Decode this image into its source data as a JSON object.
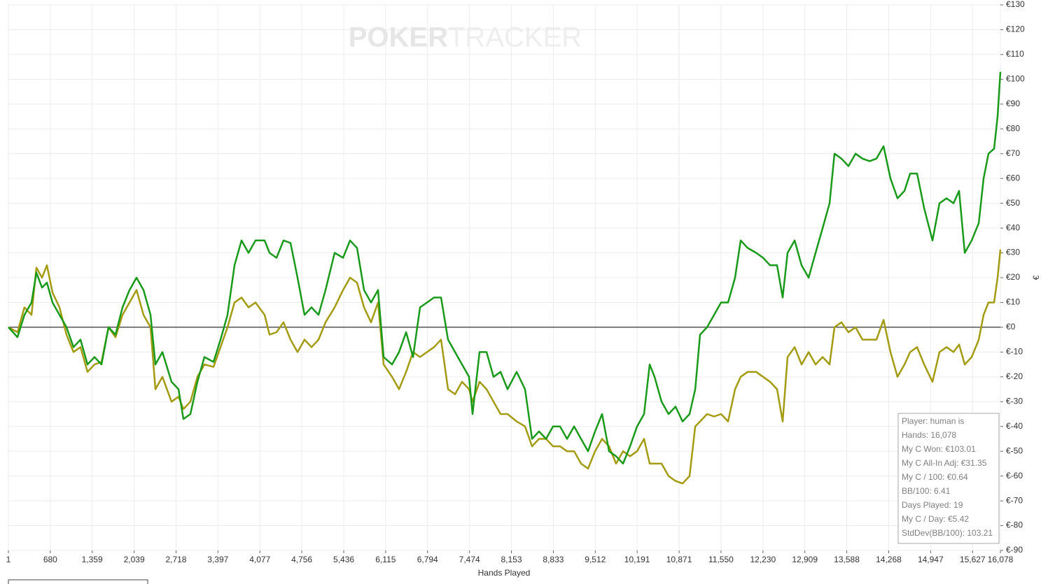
{
  "chart_data": {
    "type": "line",
    "watermark": {
      "left": "POKER",
      "right": "TRACKER"
    },
    "x_label": "Hands Played",
    "y_label": "€",
    "xlim": [
      1,
      16078
    ],
    "ylim": [
      -90,
      130
    ],
    "grid": true,
    "xticks": [
      1,
      680,
      {
        "value": 1359,
        "label": "1,359"
      },
      {
        "value": 2039,
        "label": "2,039"
      },
      {
        "value": 2718,
        "label": "2,718"
      },
      {
        "value": 3397,
        "label": "3,397"
      },
      {
        "value": 4077,
        "label": "4,077"
      },
      {
        "value": 4756,
        "label": "4,756"
      },
      {
        "value": 5436,
        "label": "5,436"
      },
      {
        "value": 6115,
        "label": "6,115"
      },
      {
        "value": 6794,
        "label": "6,794"
      },
      {
        "value": 7474,
        "label": "7,474"
      },
      {
        "value": 8153,
        "label": "8,153"
      },
      {
        "value": 8833,
        "label": "8,833"
      },
      {
        "value": 9512,
        "label": "9,512"
      },
      {
        "value": 10191,
        "label": "10,191"
      },
      {
        "value": 10871,
        "label": "10,871"
      },
      {
        "value": 11550,
        "label": "11,550"
      },
      {
        "value": 12230,
        "label": "12,230"
      },
      {
        "value": 12909,
        "label": "12,909"
      },
      {
        "value": 13588,
        "label": "13,588"
      },
      {
        "value": 14268,
        "label": "14,268"
      },
      {
        "value": 14947,
        "label": "14,947"
      },
      {
        "value": 15627,
        "label": "15,627"
      },
      {
        "value": 16078,
        "label": "16,078"
      }
    ],
    "yticks": [
      {
        "value": 130,
        "label": "€130"
      },
      {
        "value": 120,
        "label": "€120"
      },
      {
        "value": 110,
        "label": "€110"
      },
      {
        "value": 100,
        "label": "€100"
      },
      {
        "value": 90,
        "label": "€90"
      },
      {
        "value": 80,
        "label": "€80"
      },
      {
        "value": 70,
        "label": "€70"
      },
      {
        "value": 60,
        "label": "€60"
      },
      {
        "value": 50,
        "label": "€50"
      },
      {
        "value": 40,
        "label": "€40"
      },
      {
        "value": 30,
        "label": "€30"
      },
      {
        "value": 20,
        "label": "€20"
      },
      {
        "value": 10,
        "label": "€10"
      },
      {
        "value": 0,
        "label": "€0"
      },
      {
        "value": -10,
        "label": "€-10"
      },
      {
        "value": -20,
        "label": "€-20"
      },
      {
        "value": -30,
        "label": "€-30"
      },
      {
        "value": -40,
        "label": "€-40"
      },
      {
        "value": -50,
        "label": "€-50"
      },
      {
        "value": -60,
        "label": "€-60"
      },
      {
        "value": -70,
        "label": "€-70"
      },
      {
        "value": -80,
        "label": "€-80"
      },
      {
        "value": -90,
        "label": "€-90"
      }
    ],
    "x": [
      1,
      148,
      261,
      375,
      455,
      546,
      625,
      716,
      829,
      943,
      1056,
      1170,
      1283,
      1397,
      1510,
      1623,
      1737,
      1850,
      1964,
      2077,
      2191,
      2304,
      2384,
      2497,
      2645,
      2758,
      2838,
      2951,
      3064,
      3178,
      3325,
      3439,
      3552,
      3666,
      3779,
      3893,
      4006,
      4154,
      4233,
      4347,
      4460,
      4573,
      4687,
      4800,
      4914,
      5027,
      5141,
      5288,
      5424,
      5538,
      5651,
      5765,
      5878,
      5992,
      6082,
      6219,
      6332,
      6446,
      6559,
      6672,
      6786,
      6899,
      7013,
      7126,
      7240,
      7353,
      7467,
      7523,
      7637,
      7750,
      7864,
      7977,
      8090,
      8238,
      8374,
      8488,
      8601,
      8715,
      8828,
      8942,
      9055,
      9169,
      9282,
      9395,
      9509,
      9622,
      9736,
      9849,
      9963,
      10076,
      10190,
      10303,
      10394,
      10473,
      10587,
      10700,
      10814,
      10927,
      11041,
      11132,
      11211,
      11324,
      11438,
      11551,
      11665,
      11778,
      11869,
      11982,
      12119,
      12232,
      12345,
      12459,
      12550,
      12629,
      12743,
      12856,
      12970,
      13083,
      13197,
      13310,
      13389,
      13503,
      13616,
      13730,
      13843,
      13957,
      14070,
      14184,
      14297,
      14410,
      14524,
      14615,
      14728,
      14842,
      14978,
      15091,
      15205,
      15318,
      15409,
      15500,
      15613,
      15727,
      15806,
      15885,
      15976,
      16033,
      16078
    ],
    "series": [
      {
        "color": "#1a9a1a",
        "values": [
          0,
          -4,
          5,
          10,
          22,
          16,
          18,
          10,
          5,
          0,
          -8,
          -5,
          -15,
          -12,
          -15,
          0,
          -3,
          8,
          15,
          20,
          15,
          5,
          -15,
          -10,
          -22,
          -25,
          -37,
          -35,
          -22,
          -12,
          -14,
          -5,
          5,
          25,
          35,
          30,
          35,
          35,
          30,
          28,
          35,
          34,
          20,
          5,
          8,
          5,
          15,
          30,
          28,
          35,
          32,
          15,
          10,
          15,
          -12,
          -15,
          -10,
          -2,
          -12,
          8,
          10,
          12,
          12,
          -5,
          -10,
          -15,
          -20,
          -35,
          -10,
          -10,
          -20,
          -18,
          -25,
          -18,
          -25,
          -45,
          -42,
          -45,
          -40,
          -40,
          -45,
          -40,
          -45,
          -50,
          -42,
          -35,
          -50,
          -52,
          -55,
          -48,
          -40,
          -35,
          -15,
          -20,
          -30,
          -35,
          -32,
          -38,
          -35,
          -25,
          -3,
          0,
          5,
          10,
          10,
          20,
          35,
          32,
          30,
          28,
          25,
          25,
          12,
          30,
          35,
          25,
          20,
          30,
          40,
          50,
          70,
          68,
          65,
          70,
          68,
          67,
          68,
          73,
          60,
          52,
          55,
          62,
          62,
          48,
          35,
          50,
          52,
          50,
          55,
          30,
          35,
          42,
          60,
          70,
          72,
          85,
          103.01
        ]
      },
      {
        "color": "#a39b12",
        "values": [
          0,
          -2,
          8,
          5,
          24,
          20,
          25,
          14,
          8,
          -3,
          -10,
          -8,
          -18,
          -15,
          -14,
          0,
          -4,
          5,
          10,
          15,
          5,
          0,
          -25,
          -20,
          -30,
          -28,
          -33,
          -30,
          -20,
          -15,
          -16,
          -8,
          0,
          10,
          12,
          8,
          10,
          5,
          -3,
          -2,
          2,
          -5,
          -10,
          -5,
          -8,
          -5,
          2,
          8,
          15,
          20,
          18,
          8,
          2,
          10,
          -15,
          -20,
          -25,
          -18,
          -10,
          -12,
          -10,
          -8,
          -5,
          -25,
          -27,
          -22,
          -25,
          -30,
          -22,
          -25,
          -30,
          -35,
          -35,
          -38,
          -40,
          -48,
          -45,
          -45,
          -48,
          -48,
          -50,
          -50,
          -55,
          -57,
          -50,
          -45,
          -48,
          -55,
          -50,
          -52,
          -50,
          -45,
          -55,
          -55,
          -55,
          -60,
          -62,
          -63,
          -60,
          -40,
          -38,
          -35,
          -36,
          -35,
          -38,
          -25,
          -20,
          -18,
          -18,
          -20,
          -22,
          -25,
          -38,
          -12,
          -8,
          -15,
          -10,
          -15,
          -12,
          -15,
          0,
          2,
          -2,
          0,
          -5,
          -5,
          -5,
          3,
          -10,
          -20,
          -15,
          -10,
          -8,
          -15,
          -22,
          -10,
          -8,
          -10,
          -7,
          -15,
          -12,
          -5,
          5,
          10,
          10,
          20,
          31.35
        ]
      }
    ],
    "stats": [
      "Player: human is",
      "Hands: 16,078",
      "My C Won: €103.01",
      "My C All-In Adj: €31.35",
      "My C / 100: €0.64",
      "BB/100: 6.41",
      "Days Played: 19",
      "My C / Day: €5.42",
      "StdDev(BB/100): 103.21"
    ]
  }
}
